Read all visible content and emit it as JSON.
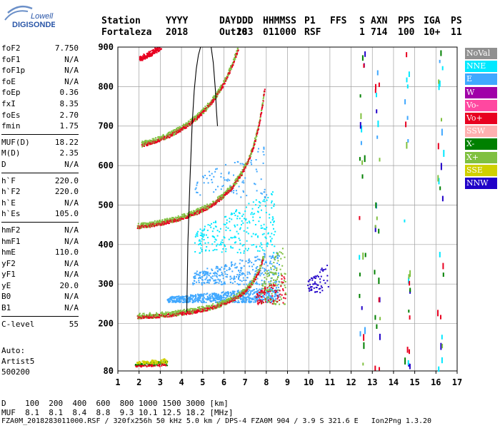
{
  "logo": {
    "line1": "Lowell",
    "line2": "DIGISONDE"
  },
  "header": {
    "labels": [
      "Station",
      "YYYY",
      "DAY",
      "DDD",
      "HHMMSS",
      "P1",
      "FFS",
      "S",
      "AXN",
      "PPS",
      "IGA",
      "PS"
    ],
    "values": [
      "Fortaleza",
      "2018",
      "Out10",
      "283",
      "011000",
      "RSF",
      "",
      "1",
      "714",
      "100",
      "10+",
      "11"
    ]
  },
  "params": [
    {
      "group": [
        {
          "name": "foF2",
          "value": "7.750"
        },
        {
          "name": "foF1",
          "value": "N/A"
        },
        {
          "name": "foF1p",
          "value": "N/A"
        },
        {
          "name": "foE",
          "value": "N/A"
        },
        {
          "name": "foEp",
          "value": "0.36"
        },
        {
          "name": "fxI",
          "value": "8.35"
        },
        {
          "name": "foEs",
          "value": "2.70"
        },
        {
          "name": "fmin",
          "value": "1.75"
        }
      ]
    },
    {
      "group": [
        {
          "name": "MUF(D)",
          "value": "18.22"
        },
        {
          "name": "M(D)",
          "value": "2.35"
        },
        {
          "name": "D",
          "value": "N/A"
        }
      ]
    },
    {
      "group": [
        {
          "name": "h`F",
          "value": "220.0"
        },
        {
          "name": "h`F2",
          "value": "220.0"
        },
        {
          "name": "h`E",
          "value": "N/A"
        },
        {
          "name": "h`Es",
          "value": "105.0"
        }
      ]
    },
    {
      "group": [
        {
          "name": "hmF2",
          "value": "N/A"
        },
        {
          "name": "hmF1",
          "value": "N/A"
        },
        {
          "name": "hmE",
          "value": "110.0"
        },
        {
          "name": "yF2",
          "value": "N/A"
        },
        {
          "name": "yF1",
          "value": "N/A"
        },
        {
          "name": "yE",
          "value": "20.0"
        },
        {
          "name": "B0",
          "value": "N/A"
        },
        {
          "name": "B1",
          "value": "N/A"
        }
      ]
    },
    {
      "group": [
        {
          "name": "C-level",
          "value": "55"
        }
      ]
    }
  ],
  "auto": {
    "line1": "Auto:",
    "line2": "Artist5",
    "line3": "500200"
  },
  "legend": [
    {
      "label": "NoVal",
      "color": "#909090"
    },
    {
      "label": "NNE",
      "color": "#00e8ff"
    },
    {
      "label": "E",
      "color": "#40a8ff"
    },
    {
      "label": "W",
      "color": "#a000a8"
    },
    {
      "label": "Vo-",
      "color": "#ff48a0"
    },
    {
      "label": "Vo+",
      "color": "#e80020"
    },
    {
      "label": "SSW",
      "color": "#ffb0b0"
    },
    {
      "label": "X-",
      "color": "#008000"
    },
    {
      "label": "X+",
      "color": "#80c040"
    },
    {
      "label": "SSE",
      "color": "#d0d000"
    },
    {
      "label": "NNW",
      "color": "#2000c8"
    }
  ],
  "dline": "D    100  200  400  600  800 1000 1500 3000 [km]",
  "mline": "MUF  8.1  8.1  8.4  8.8  9.3 10.1 12.5 18.2 [MHz]",
  "footer": "FZA0M_2018283011000.RSF / 320fx256h 50 kHz 5.0 km / DPS-4 FZA0M 904 / 3.9 S 321.6 E   Ion2Png 1.3.20",
  "chart_data": {
    "type": "scatter",
    "title": "",
    "xlabel": "",
    "ylabel": "",
    "xlim": [
      1,
      17
    ],
    "ylim": [
      80,
      900
    ],
    "xticks": [
      1,
      2,
      3,
      4,
      5,
      6,
      7,
      8,
      9,
      10,
      11,
      12,
      13,
      14,
      15,
      16,
      17
    ],
    "yticks": [
      80,
      200,
      300,
      400,
      500,
      600,
      700,
      800,
      900
    ],
    "grid": true,
    "traces": [
      {
        "class": "Vo+",
        "mode": "curve",
        "x0": 1.9,
        "x1": 7.85,
        "h0": 215,
        "fo": 8.4,
        "k": 1.6,
        "alt": "X+"
      },
      {
        "class": "Vo+",
        "mode": "curve",
        "x0": 1.9,
        "x1": 7.9,
        "h0": 440,
        "fo": 8.5,
        "k": 1.9,
        "alt": "X+"
      },
      {
        "class": "Vo+",
        "mode": "curve",
        "x0": 2.1,
        "x1": 7.6,
        "h0": 640,
        "fo": 8.3,
        "k": 2.4,
        "alt": "X+"
      },
      {
        "class": "Vo+",
        "mode": "curve",
        "x0": 2.0,
        "x1": 3.9,
        "h0": 850,
        "fo": 6.0,
        "k": 1.5,
        "alt": "Vo+"
      }
    ],
    "clouds": [
      {
        "class": "E",
        "x": [
          3.3,
          8.6
        ],
        "h": [
          255,
          295
        ],
        "n": 700
      },
      {
        "class": "E",
        "x": [
          4.5,
          8.6
        ],
        "h": [
          300,
          390
        ],
        "n": 330
      },
      {
        "class": "NNE",
        "x": [
          4.6,
          8.4
        ],
        "h": [
          380,
          540
        ],
        "n": 260
      },
      {
        "class": "E",
        "x": [
          4.6,
          8.0
        ],
        "h": [
          520,
          660
        ],
        "n": 90
      },
      {
        "class": "X+",
        "x": [
          7.7,
          8.9
        ],
        "h": [
          250,
          420
        ],
        "n": 120
      },
      {
        "class": "Vo+",
        "x": [
          7.5,
          8.9
        ],
        "h": [
          250,
          330
        ],
        "n": 80
      },
      {
        "class": "NNW",
        "x": [
          9.9,
          10.9
        ],
        "h": [
          280,
          360
        ],
        "n": 60
      },
      {
        "class": "X-",
        "x": [
          1.8,
          3.3
        ],
        "h": [
          95,
          108
        ],
        "n": 90
      },
      {
        "class": "SSE",
        "x": [
          1.8,
          3.3
        ],
        "h": [
          100,
          113
        ],
        "n": 80
      },
      {
        "class": "Vo+",
        "x": [
          1.8,
          3.3
        ],
        "h": [
          92,
          100
        ],
        "n": 40
      }
    ],
    "muf_curve": {
      "x": [
        4.25,
        4.3,
        4.4,
        4.5,
        4.6,
        4.7,
        4.8,
        4.9,
        5.0,
        5.2,
        5.4,
        5.5,
        5.6,
        5.65,
        5.7
      ],
      "h": [
        230,
        400,
        560,
        700,
        790,
        845,
        880,
        900,
        900,
        900,
        900,
        860,
        790,
        740,
        700
      ]
    },
    "vertical_noise": [
      12.5,
      13.2,
      14.6,
      16.2
    ]
  }
}
